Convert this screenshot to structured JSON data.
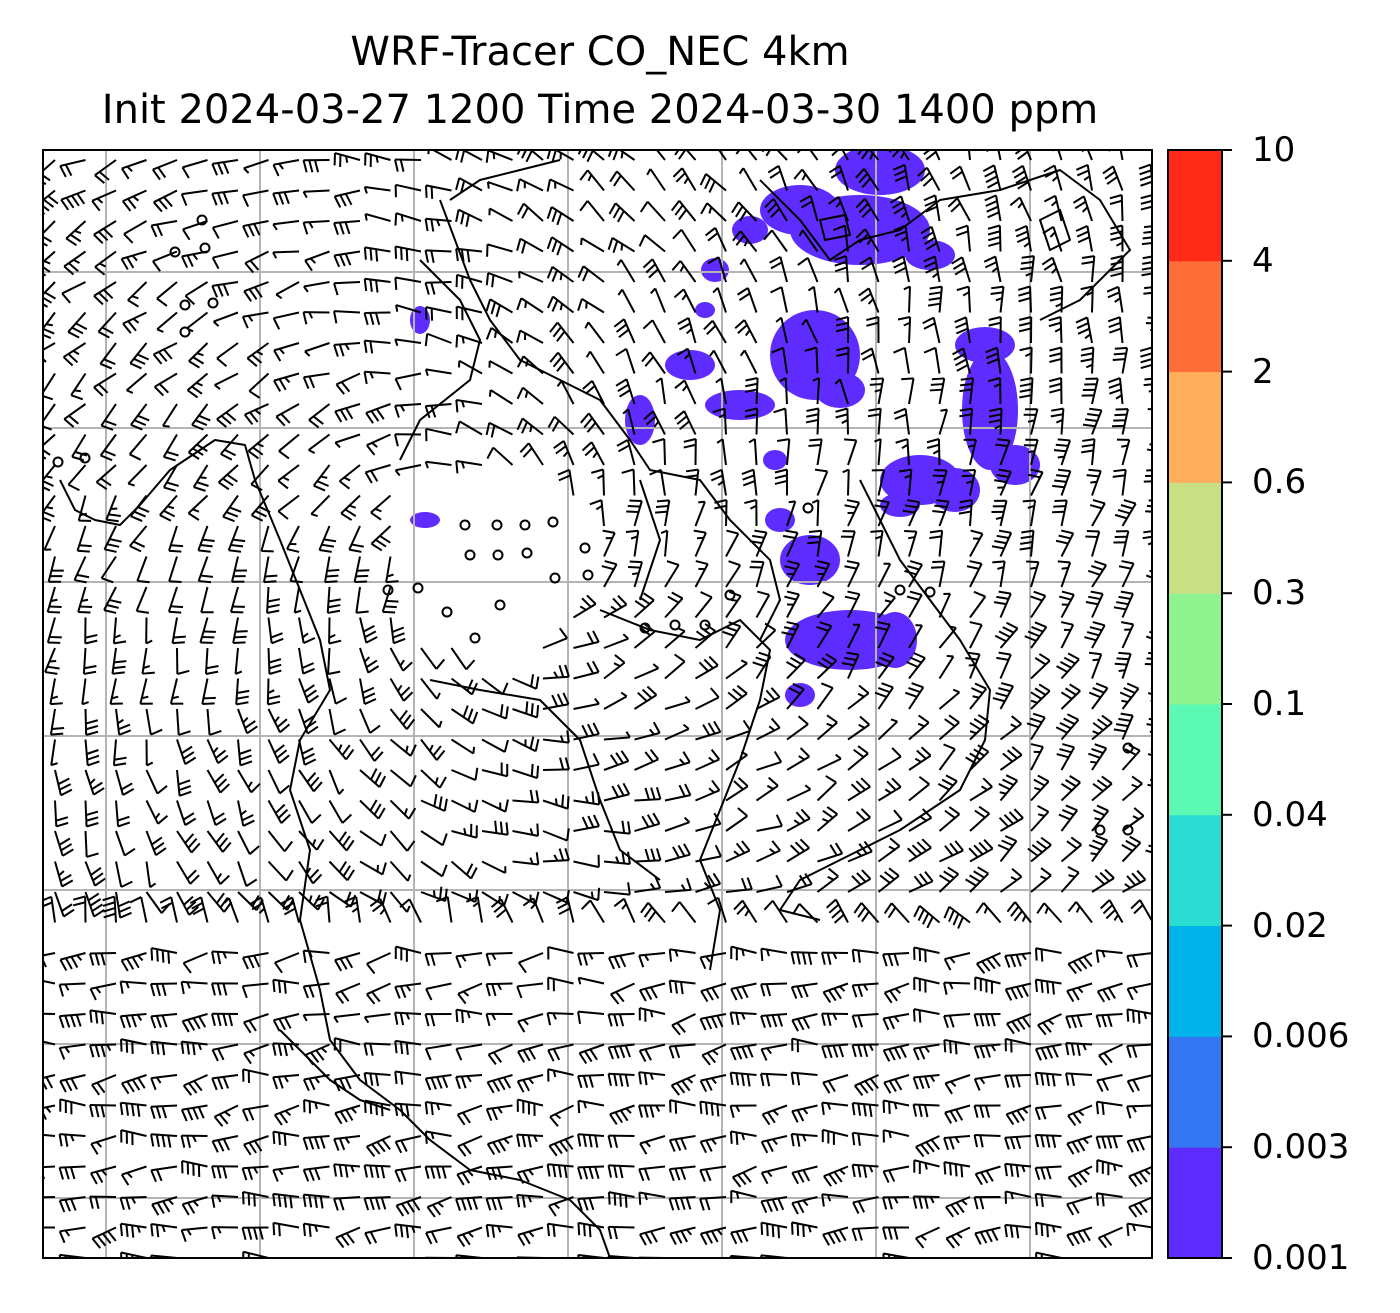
{
  "title": {
    "line1": "WRF-Tracer CO_NEC 4km",
    "line2": "Init 2024-03-27 1200 Time 2024-03-30 1400 ppm"
  },
  "colorbar": {
    "levels": [
      "0.001",
      "0.003",
      "0.006",
      "0.02",
      "0.04",
      "0.1",
      "0.3",
      "0.6",
      "2",
      "4",
      "10"
    ],
    "colors": [
      "#5f2cff",
      "#3577f2",
      "#00b1ea",
      "#2bdcd2",
      "#5cf9b4",
      "#8ff38f",
      "#c8df84",
      "#ffae5c",
      "#ff6e38",
      "#ff2a18"
    ]
  },
  "map": {
    "field": "CO_NEC tracer concentration",
    "fill_color": "#5f2cff",
    "overlay": "wind barbs",
    "gridlines": true
  }
}
